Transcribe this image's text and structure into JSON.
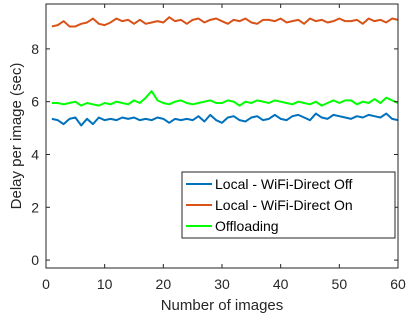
{
  "chart_data": {
    "type": "line",
    "title": "",
    "xlabel": "Number of images",
    "ylabel": "Delay per image (sec)",
    "xlim": [
      0,
      60
    ],
    "ylim": [
      -0.3,
      9.7
    ],
    "xticks": [
      0,
      10,
      20,
      30,
      40,
      50,
      60
    ],
    "yticks": [
      0,
      2,
      4,
      6,
      8
    ],
    "grid": false,
    "legend_position": "bottom-right",
    "x": [
      1,
      2,
      3,
      4,
      5,
      6,
      7,
      8,
      9,
      10,
      11,
      12,
      13,
      14,
      15,
      16,
      17,
      18,
      19,
      20,
      21,
      22,
      23,
      24,
      25,
      26,
      27,
      28,
      29,
      30,
      31,
      32,
      33,
      34,
      35,
      36,
      37,
      38,
      39,
      40,
      41,
      42,
      43,
      44,
      45,
      46,
      47,
      48,
      49,
      50,
      51,
      52,
      53,
      54,
      55,
      56,
      57,
      58,
      59,
      60
    ],
    "series": [
      {
        "name": "Local - WiFi-Direct Off",
        "color": "#0072BD",
        "values": [
          5.35,
          5.3,
          5.15,
          5.35,
          5.4,
          5.1,
          5.35,
          5.15,
          5.4,
          5.3,
          5.35,
          5.3,
          5.4,
          5.35,
          5.4,
          5.3,
          5.35,
          5.3,
          5.4,
          5.35,
          5.2,
          5.35,
          5.3,
          5.35,
          5.3,
          5.45,
          5.25,
          5.5,
          5.3,
          5.2,
          5.4,
          5.45,
          5.3,
          5.25,
          5.4,
          5.45,
          5.3,
          5.35,
          5.5,
          5.35,
          5.3,
          5.45,
          5.5,
          5.4,
          5.3,
          5.55,
          5.4,
          5.35,
          5.5,
          5.45,
          5.4,
          5.35,
          5.45,
          5.4,
          5.5,
          5.45,
          5.4,
          5.55,
          5.35,
          5.3
        ]
      },
      {
        "name": "Local - WiFi-Direct On",
        "color": "#D95319",
        "values": [
          8.85,
          8.9,
          9.05,
          8.85,
          8.85,
          8.95,
          9.0,
          9.15,
          8.95,
          8.9,
          9.0,
          9.15,
          9.05,
          9.1,
          8.95,
          9.1,
          8.95,
          9.0,
          9.05,
          9.0,
          9.2,
          9.05,
          9.1,
          8.95,
          9.1,
          9.15,
          9.0,
          9.1,
          9.15,
          9.05,
          8.95,
          9.1,
          9.05,
          9.15,
          9.0,
          8.95,
          9.1,
          9.1,
          9.05,
          9.15,
          9.0,
          9.05,
          9.1,
          8.95,
          9.15,
          9.05,
          9.1,
          9.0,
          9.05,
          9.15,
          9.05,
          9.05,
          9.1,
          8.95,
          9.15,
          9.05,
          9.1,
          9.0,
          9.15,
          9.1
        ]
      },
      {
        "name": "Offloading",
        "color": "#00FF00",
        "values": [
          5.95,
          5.95,
          5.9,
          5.95,
          6.0,
          5.85,
          5.95,
          5.9,
          5.85,
          5.95,
          5.9,
          6.0,
          5.95,
          5.9,
          6.05,
          5.95,
          6.15,
          6.4,
          6.05,
          5.95,
          5.9,
          6.0,
          6.05,
          5.95,
          5.9,
          5.95,
          6.0,
          6.05,
          5.95,
          5.95,
          6.05,
          6.0,
          5.85,
          6.0,
          5.95,
          6.05,
          6.0,
          5.95,
          6.05,
          6.0,
          5.95,
          5.9,
          6.0,
          5.95,
          5.9,
          6.0,
          5.85,
          5.95,
          6.05,
          5.95,
          6.05,
          6.05,
          5.9,
          6.0,
          5.95,
          6.1,
          5.95,
          6.15,
          6.05,
          5.95
        ]
      }
    ]
  }
}
